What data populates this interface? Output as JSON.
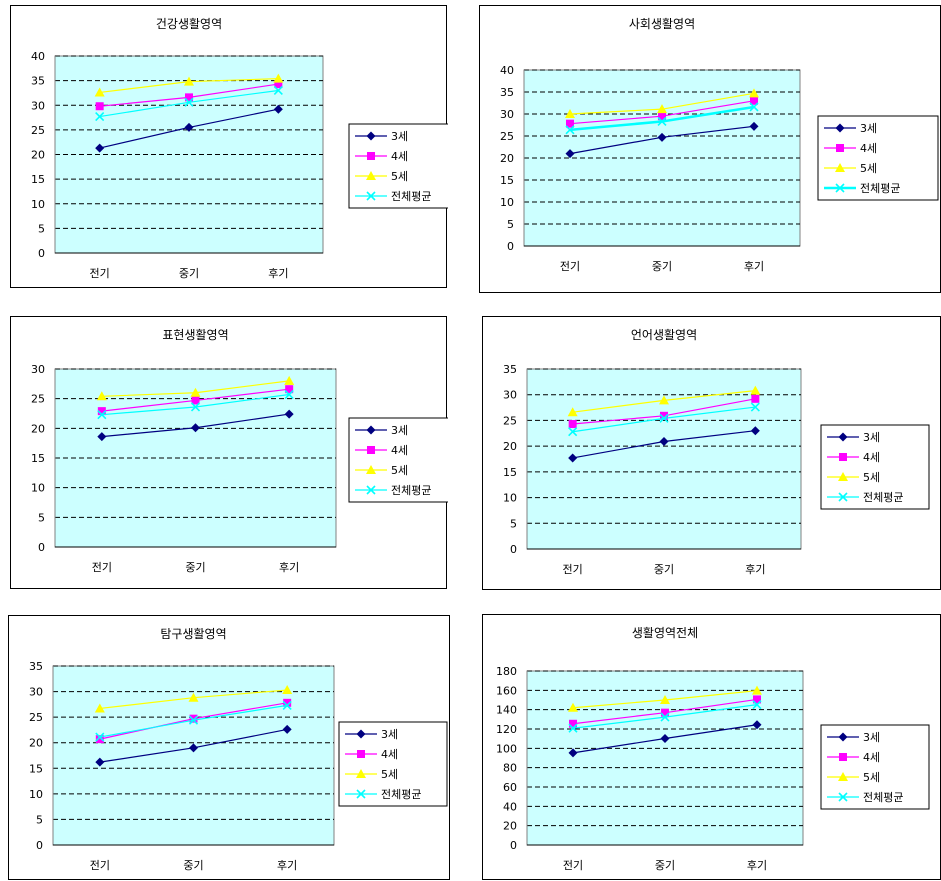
{
  "chart_data": [
    {
      "type": "line",
      "title": "건강생활영역",
      "categories": [
        "전기",
        "중기",
        "후기"
      ],
      "ylim": [
        0,
        40
      ],
      "ystep": 5,
      "series": [
        {
          "name": "3세",
          "values": [
            21.3,
            25.5,
            29.2
          ]
        },
        {
          "name": "4세",
          "values": [
            29.8,
            31.6,
            34.3
          ]
        },
        {
          "name": "5세",
          "values": [
            32.6,
            34.8,
            35.4
          ]
        },
        {
          "name": "전체평균",
          "values": [
            27.7,
            30.6,
            33.0
          ]
        }
      ],
      "grid": true,
      "legend": "right"
    },
    {
      "type": "line",
      "title": "사회생활영역",
      "categories": [
        "전기",
        "중기",
        "후기"
      ],
      "ylim": [
        0,
        40
      ],
      "ystep": 5,
      "series": [
        {
          "name": "3세",
          "values": [
            21.0,
            24.7,
            27.2
          ]
        },
        {
          "name": "4세",
          "values": [
            27.8,
            29.5,
            33.0
          ]
        },
        {
          "name": "5세",
          "values": [
            30.0,
            31.1,
            34.7
          ]
        },
        {
          "name": "전체평균",
          "values": [
            26.4,
            28.3,
            31.6
          ]
        }
      ],
      "grid": true,
      "legend": "right"
    },
    {
      "type": "line",
      "title": "표현생활영역",
      "categories": [
        "전기",
        "중기",
        "후기"
      ],
      "ylim": [
        0,
        30
      ],
      "ystep": 5,
      "series": [
        {
          "name": "3세",
          "values": [
            18.6,
            20.1,
            22.4
          ]
        },
        {
          "name": "4세",
          "values": [
            22.9,
            24.7,
            26.6
          ]
        },
        {
          "name": "5세",
          "values": [
            25.4,
            26.0,
            28.0
          ]
        },
        {
          "name": "전체평균",
          "values": [
            22.3,
            23.6,
            25.7
          ]
        }
      ],
      "grid": true,
      "legend": "right"
    },
    {
      "type": "line",
      "title": "언어생활영역",
      "categories": [
        "전기",
        "중기",
        "후기"
      ],
      "ylim": [
        0,
        35
      ],
      "ystep": 5,
      "series": [
        {
          "name": "3세",
          "values": [
            17.7,
            20.9,
            23.0
          ]
        },
        {
          "name": "4세",
          "values": [
            24.3,
            25.9,
            29.2
          ]
        },
        {
          "name": "5세",
          "values": [
            26.6,
            28.9,
            30.8
          ]
        },
        {
          "name": "전체평균",
          "values": [
            22.8,
            25.4,
            27.6
          ]
        }
      ],
      "grid": true,
      "legend": "right"
    },
    {
      "type": "line",
      "title": "탐구생활영역",
      "categories": [
        "전기",
        "중기",
        "후기"
      ],
      "ylim": [
        0,
        35
      ],
      "ystep": 5,
      "series": [
        {
          "name": "3세",
          "values": [
            16.2,
            19.0,
            22.6
          ]
        },
        {
          "name": "4세",
          "values": [
            20.7,
            24.7,
            27.8
          ]
        },
        {
          "name": "5세",
          "values": [
            26.7,
            28.8,
            30.3
          ]
        },
        {
          "name": "전체평균",
          "values": [
            21.1,
            24.4,
            27.3
          ]
        }
      ],
      "grid": true,
      "legend": "right"
    },
    {
      "type": "line",
      "title": "생활영역전체",
      "categories": [
        "전기",
        "중기",
        "후기"
      ],
      "ylim": [
        0,
        180
      ],
      "ystep": 20,
      "series": [
        {
          "name": "3세",
          "values": [
            95.3,
            110.2,
            124.4
          ]
        },
        {
          "name": "4세",
          "values": [
            125.4,
            136.9,
            150.6
          ]
        },
        {
          "name": "5세",
          "values": [
            142.0,
            150.0,
            159.7
          ]
        },
        {
          "name": "전체평균",
          "values": [
            120.8,
            132.3,
            145.2
          ]
        }
      ],
      "grid": true,
      "legend": "right"
    }
  ],
  "style": {
    "plot_bg": "#ccffff",
    "series_colors": [
      "#000080",
      "#ff00ff",
      "#ffff00",
      "#00ffff"
    ],
    "markers": [
      "diamond",
      "square",
      "triangle",
      "x"
    ]
  }
}
